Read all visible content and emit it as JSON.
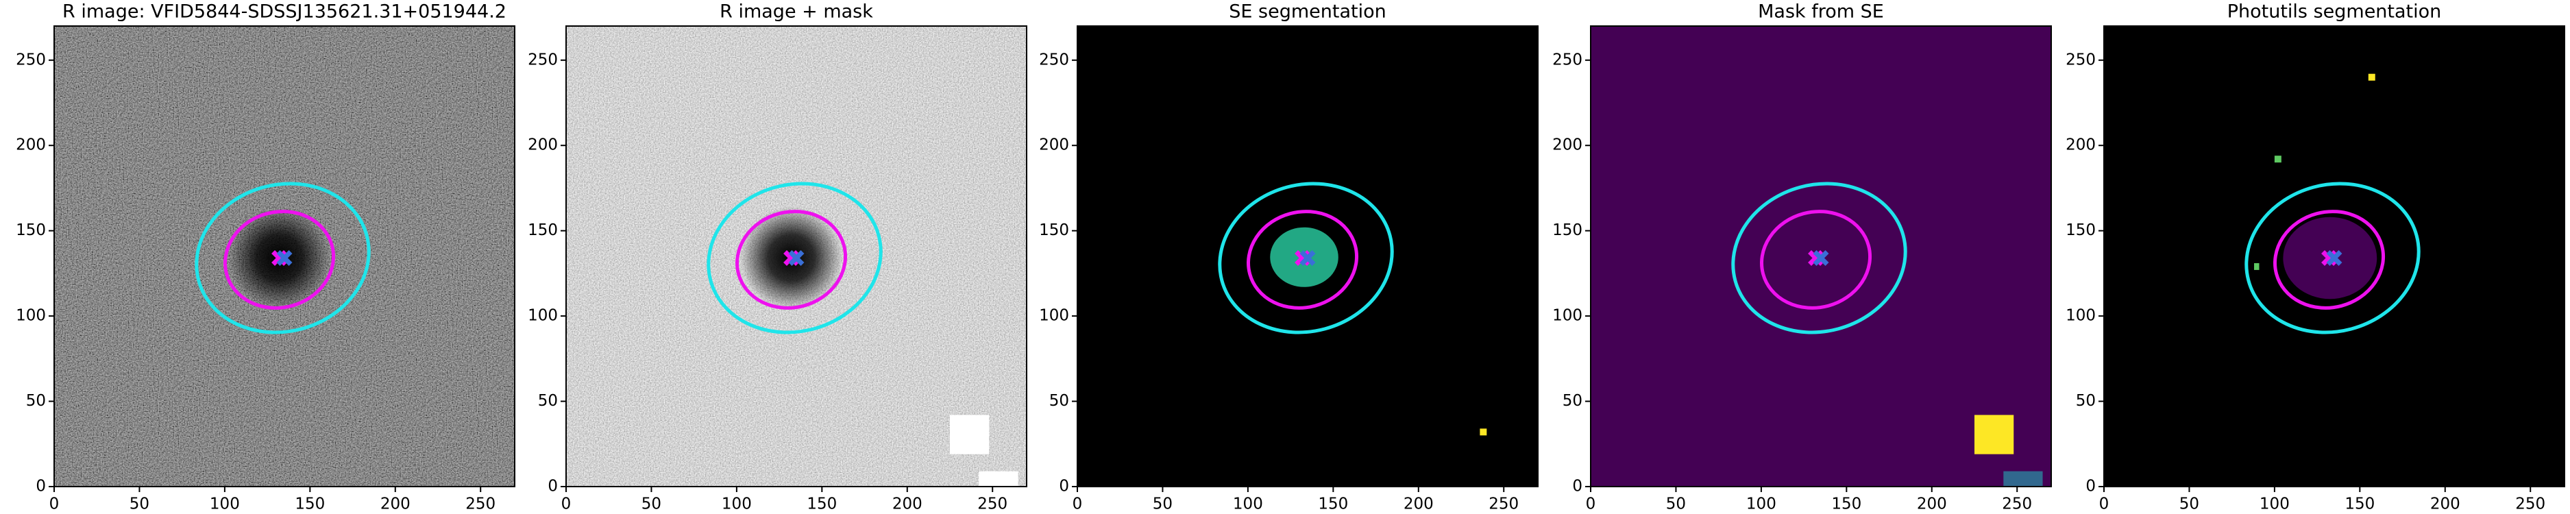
{
  "chart_data": [
    {
      "type": "image",
      "title": "R image: VFID5844-SDSSJ135621.31+051944.2",
      "background": "#3a3a3a",
      "xlim": [
        0,
        270
      ],
      "ylim": [
        0,
        270
      ],
      "xticks": [
        0,
        50,
        100,
        150,
        200,
        250
      ],
      "yticks": [
        0,
        50,
        100,
        150,
        200,
        250
      ],
      "ellipses": [
        {
          "color": "#1fe5ea",
          "center": [
            134,
            134
          ],
          "axes": [
            51,
            43
          ],
          "angle": 15
        },
        {
          "color": "#ee11ee",
          "center": [
            132,
            133
          ],
          "axes": [
            32,
            28
          ],
          "angle": 15
        }
      ],
      "markers": [
        {
          "color": "#ee11ee",
          "x": 132,
          "y": 134
        },
        {
          "color": "#3a6fd8",
          "x": 135,
          "y": 134
        }
      ],
      "regions": []
    },
    {
      "type": "image",
      "title": "R image + mask",
      "background": "#a8a8a8",
      "xlim": [
        0,
        270
      ],
      "ylim": [
        0,
        270
      ],
      "xticks": [
        0,
        50,
        100,
        150,
        200,
        250
      ],
      "yticks": [
        0,
        50,
        100,
        150,
        200,
        250
      ],
      "ellipses": [
        {
          "color": "#1fe5ea",
          "center": [
            134,
            134
          ],
          "axes": [
            51,
            43
          ],
          "angle": 15
        },
        {
          "color": "#ee11ee",
          "center": [
            132,
            133
          ],
          "axes": [
            32,
            28
          ],
          "angle": 15
        }
      ],
      "markers": [
        {
          "color": "#ee11ee",
          "x": 132,
          "y": 134
        },
        {
          "color": "#3a6fd8",
          "x": 135,
          "y": 134
        }
      ],
      "regions": [
        {
          "shape": "rect",
          "color": "#ffffff",
          "x": [
            225,
            248
          ],
          "y": [
            19,
            42
          ]
        },
        {
          "shape": "rect",
          "color": "#ffffff",
          "x": [
            242,
            265
          ],
          "y": [
            0,
            9
          ]
        }
      ]
    },
    {
      "type": "image",
      "title": "SE segmentation",
      "background": "#000000",
      "xlim": [
        0,
        270
      ],
      "ylim": [
        0,
        270
      ],
      "xticks": [
        0,
        50,
        100,
        150,
        200,
        250
      ],
      "yticks": [
        0,
        50,
        100,
        150,
        200,
        250
      ],
      "ellipses": [
        {
          "color": "#1fe5ea",
          "center": [
            134,
            134
          ],
          "axes": [
            51,
            43
          ],
          "angle": 15
        },
        {
          "color": "#ee11ee",
          "center": [
            132,
            133
          ],
          "axes": [
            32,
            28
          ],
          "angle": 15
        }
      ],
      "markers": [
        {
          "color": "#ee11ee",
          "x": 132,
          "y": 134
        },
        {
          "color": "#3a6fd8",
          "x": 135,
          "y": 134
        }
      ],
      "regions": [
        {
          "shape": "ellipse",
          "color": "#22a884",
          "x": [
            113,
            153
          ],
          "y": [
            117,
            152
          ]
        },
        {
          "shape": "rect",
          "color": "#fde725",
          "x": [
            236,
            240
          ],
          "y": [
            30,
            34
          ]
        }
      ]
    },
    {
      "type": "image",
      "title": "Mask from SE",
      "background": "#440154",
      "xlim": [
        0,
        270
      ],
      "ylim": [
        0,
        270
      ],
      "xticks": [
        0,
        50,
        100,
        150,
        200,
        250
      ],
      "yticks": [
        0,
        50,
        100,
        150,
        200,
        250
      ],
      "ellipses": [
        {
          "color": "#1fe5ea",
          "center": [
            134,
            134
          ],
          "axes": [
            51,
            43
          ],
          "angle": 15
        },
        {
          "color": "#ee11ee",
          "center": [
            132,
            133
          ],
          "axes": [
            32,
            28
          ],
          "angle": 15
        }
      ],
      "markers": [
        {
          "color": "#ee11ee",
          "x": 132,
          "y": 134
        },
        {
          "color": "#3a6fd8",
          "x": 135,
          "y": 134
        }
      ],
      "regions": [
        {
          "shape": "rect",
          "color": "#fde725",
          "x": [
            225,
            248
          ],
          "y": [
            19,
            42
          ]
        },
        {
          "shape": "rect",
          "color": "#31688e",
          "x": [
            242,
            265
          ],
          "y": [
            0,
            9
          ]
        }
      ]
    },
    {
      "type": "image",
      "title": "Photutils segmentation",
      "background": "#000000",
      "xlim": [
        0,
        270
      ],
      "ylim": [
        0,
        270
      ],
      "xticks": [
        0,
        50,
        100,
        150,
        200,
        250
      ],
      "yticks": [
        0,
        50,
        100,
        150,
        200,
        250
      ],
      "ellipses": [
        {
          "color": "#1fe5ea",
          "center": [
            134,
            134
          ],
          "axes": [
            51,
            43
          ],
          "angle": 15
        },
        {
          "color": "#ee11ee",
          "center": [
            132,
            133
          ],
          "axes": [
            32,
            28
          ],
          "angle": 15
        }
      ],
      "markers": [
        {
          "color": "#ee11ee",
          "x": 132,
          "y": 134
        },
        {
          "color": "#3a6fd8",
          "x": 135,
          "y": 134
        }
      ],
      "regions": [
        {
          "shape": "ellipse",
          "color": "#440154",
          "x": [
            105,
            160
          ],
          "y": [
            110,
            158
          ]
        },
        {
          "shape": "rect",
          "color": "#fde725",
          "x": [
            155,
            159
          ],
          "y": [
            238,
            242
          ]
        },
        {
          "shape": "rect",
          "color": "#5ec962",
          "x": [
            100,
            104
          ],
          "y": [
            190,
            194
          ]
        },
        {
          "shape": "rect",
          "color": "#5ec962",
          "x": [
            88,
            91
          ],
          "y": [
            127,
            131
          ]
        }
      ]
    }
  ]
}
